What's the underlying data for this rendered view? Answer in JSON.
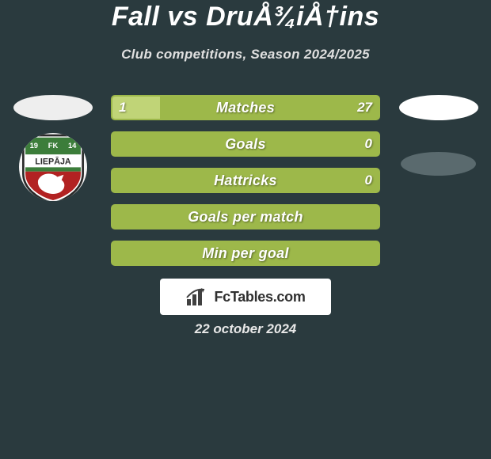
{
  "title": "Fall vs DruÅ¾iÅ†ins",
  "subtitle": "Club competitions, Season 2024/2025",
  "date": "22 october 2024",
  "brand": {
    "text": "FcTables.com",
    "bg": "#ffffff",
    "text_color": "#303030"
  },
  "palette": {
    "bg": "#2a3a3e",
    "bar_fill": "#9db84a",
    "bar_light": "#c0d477",
    "text": "#ffffff"
  },
  "left_side": {
    "ellipses": [
      {
        "bg": "#eeeeee"
      }
    ],
    "club_badge": {
      "name": "FK Liepāja",
      "label": "LIEPĀJA",
      "year_left": "19",
      "year_right": "14",
      "colors": {
        "shield_green": "#3c7d3a",
        "shield_red": "#b22222",
        "shield_white": "#ffffff",
        "shield_dark": "#2a2a2a",
        "circle_bg": "#f4f4f4"
      }
    }
  },
  "right_side": {
    "ellipses": [
      {
        "bg": "#ffffff"
      },
      {
        "bg": "#5a6a6e"
      }
    ]
  },
  "bars": [
    {
      "label": "Matches",
      "left": "1",
      "right": "27",
      "left_pct": 18
    },
    {
      "label": "Goals",
      "left": "",
      "right": "0",
      "left_pct": 0
    },
    {
      "label": "Hattricks",
      "left": "",
      "right": "0",
      "left_pct": 0
    },
    {
      "label": "Goals per match",
      "left": "",
      "right": "",
      "left_pct": 0
    },
    {
      "label": "Min per goal",
      "left": "",
      "right": "",
      "left_pct": 0
    }
  ]
}
